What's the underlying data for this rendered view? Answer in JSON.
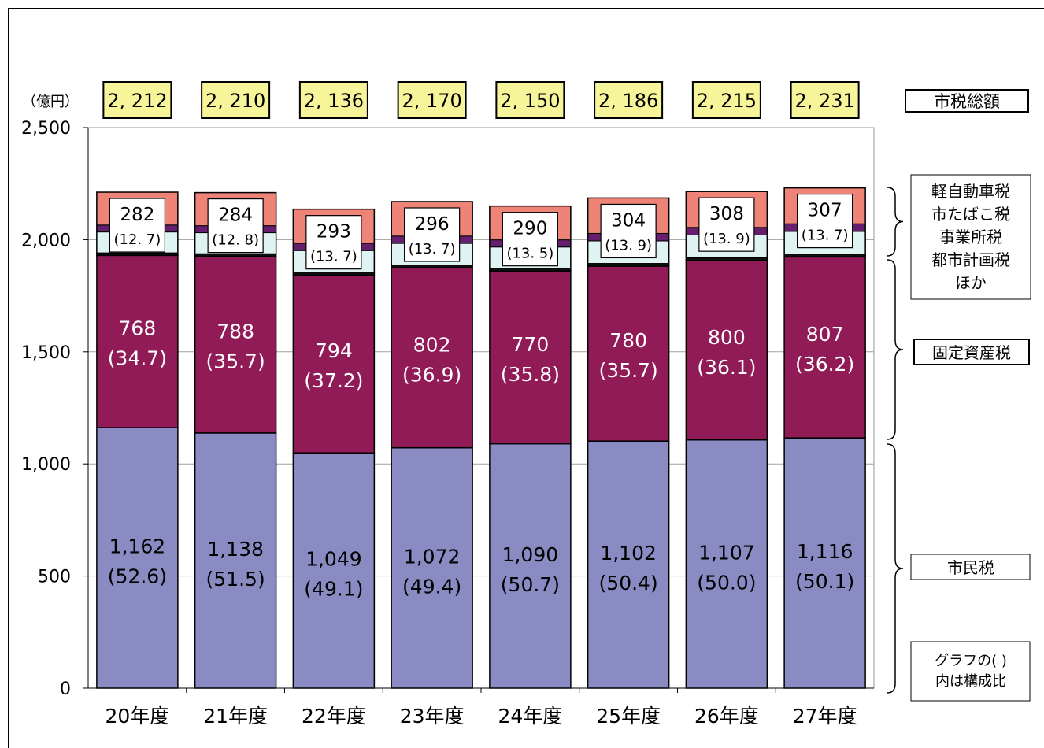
{
  "chart_data": {
    "type": "bar",
    "stacked": true,
    "unit": "（億円）",
    "categories": [
      "20年度",
      "21年度",
      "22年度",
      "23年度",
      "24年度",
      "25年度",
      "26年度",
      "27年度"
    ],
    "ylim": [
      0,
      2500
    ],
    "yticks": [
      "0",
      "500",
      "1,000",
      "1,500",
      "2,000",
      "2,500"
    ],
    "ytick_values": [
      0,
      500,
      1000,
      1500,
      2000,
      2500
    ],
    "grid": true,
    "totals": {
      "values": [
        2212,
        2210,
        2136,
        2170,
        2150,
        2186,
        2215,
        2231
      ],
      "labels": [
        "2, 212",
        "2, 210",
        "2, 136",
        "2, 170",
        "2, 150",
        "2, 186",
        "2, 215",
        "2, 231"
      ]
    },
    "series": [
      {
        "name": "市民税",
        "color": "#8b8bc4",
        "values": [
          1162,
          1138,
          1049,
          1072,
          1090,
          1102,
          1107,
          1116
        ],
        "labels": [
          "1,162",
          "1,138",
          "1,049",
          "1,072",
          "1,090",
          "1,102",
          "1,107",
          "1,116"
        ],
        "shares": [
          "(52.6)",
          "(51.5)",
          "(49.1)",
          "(49.4)",
          "(50.7)",
          "(50.4)",
          "(50.0)",
          "(50.1)"
        ]
      },
      {
        "name": "固定資産税",
        "color": "#911b56",
        "values": [
          768,
          788,
          794,
          802,
          770,
          780,
          800,
          807
        ],
        "labels": [
          "768",
          "788",
          "794",
          "802",
          "770",
          "780",
          "800",
          "807"
        ],
        "shares": [
          "(34.7)",
          "(35.7)",
          "(37.2)",
          "(36.9)",
          "(35.8)",
          "(35.7)",
          "(36.1)",
          "(36.2)"
        ]
      },
      {
        "name": "軽自動車税 市たばこ税 事業所税 都市計画税 ほか",
        "colors": [
          "#111111",
          "#dff3f3",
          "#661f6e",
          "#ee8478"
        ],
        "values": [
          282,
          284,
          293,
          296,
          290,
          304,
          308,
          307
        ],
        "labels": [
          "282",
          "284",
          "293",
          "296",
          "290",
          "304",
          "308",
          "307"
        ],
        "shares": [
          "(12. 7)",
          "(12. 8)",
          "(13. 7)",
          "(13. 7)",
          "(13. 5)",
          "(13. 9)",
          "(13. 9)",
          "(13. 7)"
        ]
      }
    ],
    "legend": {
      "total": "市税総額",
      "others": [
        "軽自動車税",
        "市たばこ税",
        "事業所税",
        "都市計画税",
        "ほか"
      ],
      "property": "固定資産税",
      "resident": "市民税",
      "note": [
        "グラフの( )",
        "内は構成比"
      ]
    },
    "colors": {
      "resident": "#8b8bc4",
      "property": "#911b56",
      "others_top": "#ee8478",
      "others_band": "#661f6e",
      "others_light": "#dff3f3",
      "total_box": "#f7f59a"
    }
  }
}
